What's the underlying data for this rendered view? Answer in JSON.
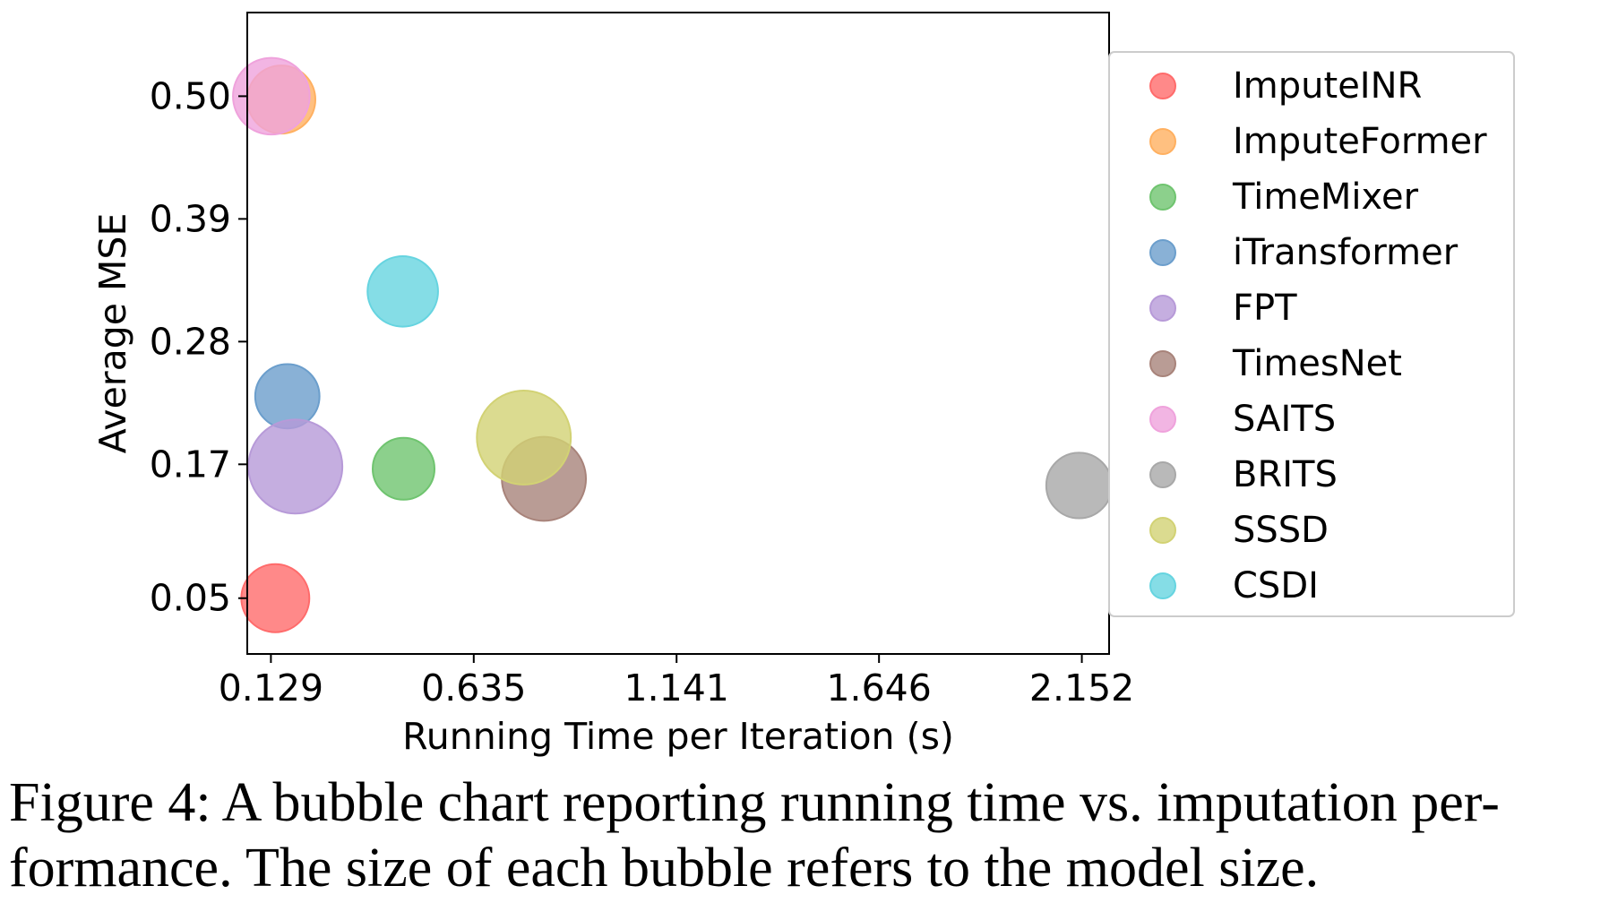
{
  "chart_data": {
    "type": "scatter",
    "subtype": "bubble",
    "xlabel": "Running Time per Iteration (s)",
    "ylabel": "Average MSE",
    "xlim": [
      0.07,
      2.22
    ],
    "ylim": [
      -0.0,
      0.575
    ],
    "x_ticks": [
      "0.129",
      "0.635",
      "1.141",
      "1.646",
      "2.152"
    ],
    "y_ticks": [
      "0.05",
      "0.17",
      "0.28",
      "0.39",
      "0.50"
    ],
    "legend_position": "outside-right",
    "series": [
      {
        "name": "ImputeINR",
        "color": "#ff6b6b",
        "x": 0.14,
        "y": 0.05,
        "size": 0.55
      },
      {
        "name": "ImputeFormer",
        "color": "#ffb060",
        "x": 0.155,
        "y": 0.497,
        "size": 0.55
      },
      {
        "name": "TimeMixer",
        "color": "#6fc46f",
        "x": 0.46,
        "y": 0.166,
        "size": 0.5
      },
      {
        "name": "iTransformer",
        "color": "#6b9ecc",
        "x": 0.17,
        "y": 0.231,
        "size": 0.52
      },
      {
        "name": "FPT",
        "color": "#b79ad8",
        "x": 0.19,
        "y": 0.168,
        "size": 0.76
      },
      {
        "name": "TimesNet",
        "color": "#a8837a",
        "x": 0.81,
        "y": 0.157,
        "size": 0.68
      },
      {
        "name": "SAITS",
        "color": "#efa2dc",
        "x": 0.13,
        "y": 0.5,
        "size": 0.62
      },
      {
        "name": "BRITS",
        "color": "#a8a8a8",
        "x": 2.145,
        "y": 0.151,
        "size": 0.53
      },
      {
        "name": "SSSD",
        "color": "#d2d274",
        "x": 0.76,
        "y": 0.194,
        "size": 0.76
      },
      {
        "name": "CSDI",
        "color": "#66d4e0",
        "x": 0.458,
        "y": 0.325,
        "size": 0.57
      }
    ]
  },
  "caption": {
    "line1": "Figure 4: A bubble chart reporting running time vs. imputation per-",
    "line2": "formance. The size of each bubble refers to the model size."
  }
}
